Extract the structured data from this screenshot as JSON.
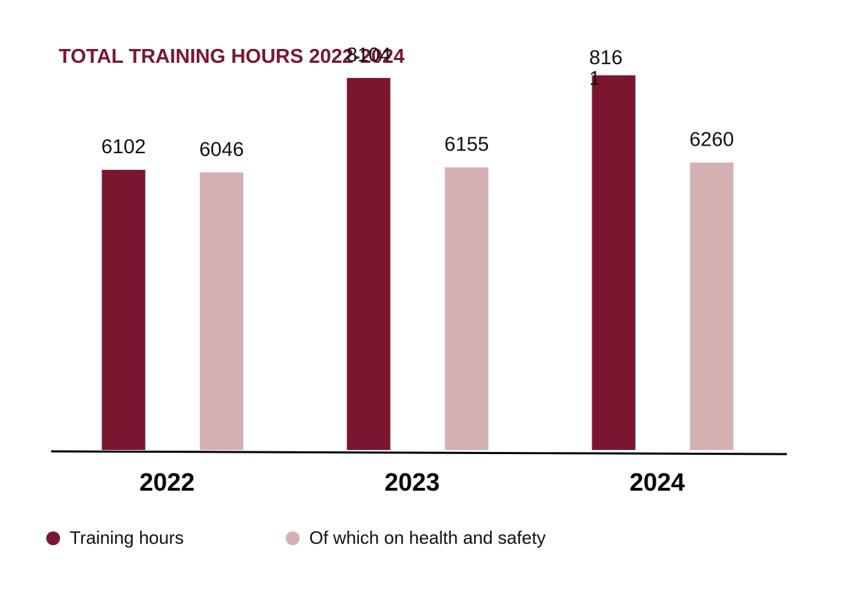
{
  "colors": {
    "primary": "#7b1631",
    "secondary": "#d4b0b2",
    "title": "#7b1631",
    "axis": "#000000"
  },
  "chart_data": {
    "type": "bar",
    "title": "TOTAL TRAINING HOURS 2022-2024",
    "categories": [
      "2022",
      "2023",
      "2024"
    ],
    "series": [
      {
        "name": "Training hours",
        "values": [
          6102,
          8104,
          8161
        ],
        "labels": [
          "6102",
          "8104",
          "816\n1"
        ]
      },
      {
        "name": "Of which on health and safety",
        "values": [
          6046,
          6155,
          6260
        ],
        "labels": [
          "6046",
          "6155",
          "6260"
        ]
      }
    ],
    "ylim": [
      0,
      8900
    ],
    "grid": false,
    "legend_position": "bottom-left"
  }
}
